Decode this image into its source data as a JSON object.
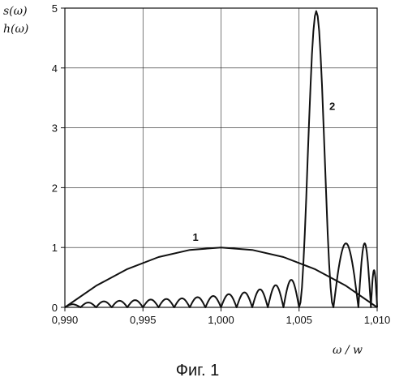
{
  "chart_data": {
    "type": "line",
    "y_labels": [
      "s(ω)",
      "h(ω)"
    ],
    "xlabel": "ω / w",
    "caption": "Фиг. 1",
    "xlim": [
      0.99,
      1.01
    ],
    "ylim": [
      0,
      5
    ],
    "x_ticks": [
      0.99,
      0.995,
      1.0,
      1.005,
      1.01
    ],
    "x_tick_labels": [
      "0,990",
      "0,995",
      "1,000",
      "1,005",
      "1,010"
    ],
    "y_ticks": [
      0,
      1,
      2,
      3,
      4,
      5
    ],
    "y_tick_labels": [
      "0",
      "1",
      "2",
      "3",
      "4",
      "5"
    ],
    "grid": true,
    "series": [
      {
        "name": "1",
        "peak_x": 1.0,
        "peak_y": 1.0,
        "x": [
          0.99,
          0.992,
          0.994,
          0.996,
          0.998,
          1.0,
          1.002,
          1.004,
          1.006,
          1.008,
          1.01
        ],
        "y": [
          0.0,
          0.36,
          0.64,
          0.84,
          0.96,
          1.0,
          0.96,
          0.84,
          0.64,
          0.36,
          0.0
        ]
      },
      {
        "name": "2",
        "peak_x": 1.006,
        "peak_y": 4.95,
        "lobe_zeros": [
          0.99,
          0.991,
          0.992,
          0.993,
          0.994,
          0.995,
          0.996,
          0.997,
          0.998,
          0.999,
          1.0,
          1.001,
          1.002,
          1.003,
          1.004,
          1.005,
          1.0072,
          1.0088,
          1.0096,
          1.01
        ],
        "side_lobe_peaks": [
          0.05,
          0.08,
          0.1,
          0.11,
          0.12,
          0.13,
          0.14,
          0.15,
          0.17,
          0.19,
          0.22,
          0.25,
          0.3,
          0.37,
          0.46,
          0.62,
          1.07,
          1.07,
          0.62,
          0.45
        ]
      }
    ]
  }
}
